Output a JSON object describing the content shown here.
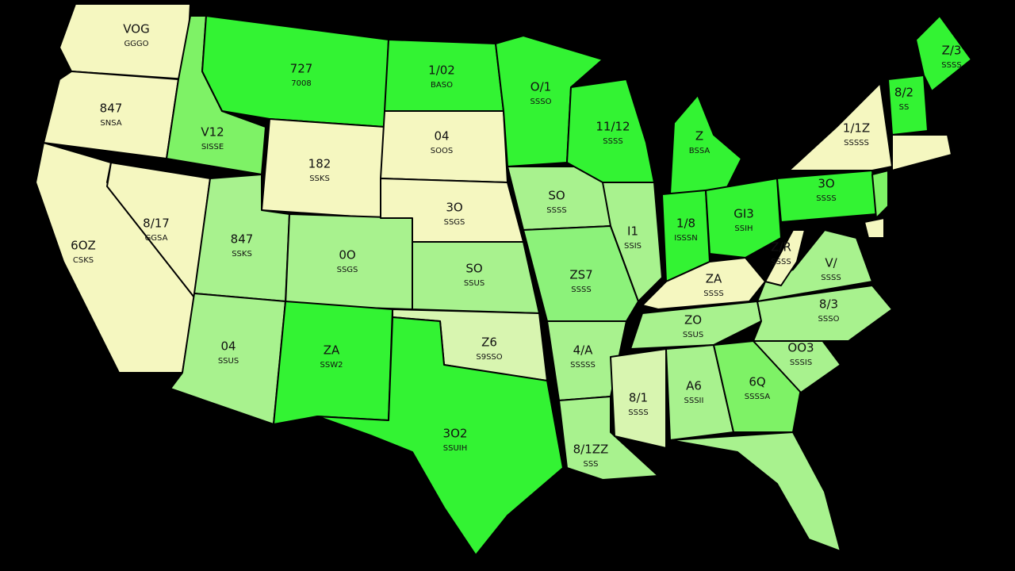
{
  "regions": [
    {
      "label": "VOG",
      "sublabel": "GGGO",
      "color": "#f5f7c0"
    },
    {
      "label": "847",
      "sublabel": "SNSA",
      "color": "#f5f7c0"
    },
    {
      "label": "6OZ",
      "sublabel": "CSKS",
      "color": "#f5f7c0"
    },
    {
      "label": "8/17",
      "sublabel": "GGSA",
      "color": "#f5f7c0"
    },
    {
      "label": "V12",
      "sublabel": "SISSE",
      "color": "#7ef266"
    },
    {
      "label": "727",
      "sublabel": "7008",
      "color": "#33f333"
    },
    {
      "label": "182",
      "sublabel": "SSKS",
      "color": "#f5f7c0"
    },
    {
      "label": "847",
      "sublabel": "SSKS",
      "color": "#a8f28e"
    },
    {
      "label": "0O",
      "sublabel": "SSGS",
      "color": "#a8f28e"
    },
    {
      "label": "04",
      "sublabel": "SSUS",
      "color": "#a8f28e"
    },
    {
      "label": "ZA",
      "sublabel": "SSW2",
      "color": "#33f333"
    },
    {
      "label": "1/02",
      "sublabel": "BASO",
      "color": "#33f333"
    },
    {
      "label": "04",
      "sublabel": "SOOS",
      "color": "#f5f7c0"
    },
    {
      "label": "3O",
      "sublabel": "SSGS",
      "color": "#f5f7c0"
    },
    {
      "label": "SO",
      "sublabel": "SSUS",
      "color": "#a8f28e"
    },
    {
      "label": "Z6",
      "sublabel": "S9SSO",
      "color": "#d8f5b0"
    },
    {
      "label": "3O2",
      "sublabel": "SSUIH",
      "color": "#33f333"
    },
    {
      "label": "O/1",
      "sublabel": "SSSO",
      "color": "#33f333"
    },
    {
      "label": "SO",
      "sublabel": "SSSS",
      "color": "#a8f28e"
    },
    {
      "label": "ZS7",
      "sublabel": "SSSS",
      "color": "#8cf27a"
    },
    {
      "label": "4/A",
      "sublabel": "SSSSS",
      "color": "#a8f28e"
    },
    {
      "label": "8/1ZZ",
      "sublabel": "SSS",
      "color": "#a8f28e"
    },
    {
      "label": "11/12",
      "sublabel": "SSSS",
      "color": "#33f333"
    },
    {
      "label": "I1",
      "sublabel": "SSIS",
      "color": "#a8f28e"
    },
    {
      "label": "Z",
      "sublabel": "BSSA",
      "color": "#33f333"
    },
    {
      "label": "1/8",
      "sublabel": "ISSSN",
      "color": "#33f333"
    },
    {
      "label": "GI3",
      "sublabel": "SSIH",
      "color": "#33f333"
    },
    {
      "label": "ZA",
      "sublabel": "SSSS",
      "color": "#f5f7c0"
    },
    {
      "label": "ZO",
      "sublabel": "SSUS",
      "color": "#a8f28e"
    },
    {
      "label": "8/1",
      "sublabel": "SSSS",
      "color": "#d8f5b0"
    },
    {
      "label": "A6",
      "sublabel": "SSSII",
      "color": "#a8f28e"
    },
    {
      "label": "6Q",
      "sublabel": "SSSSA",
      "color": "#7ef266"
    },
    {
      "color": "#a8f28e"
    },
    {
      "label": "OO3",
      "sublabel": "SSSIS",
      "color": "#a8f28e"
    },
    {
      "label": "8/3",
      "sublabel": "SSSO",
      "color": "#a8f28e"
    },
    {
      "label": "V/",
      "sublabel": "SSSS",
      "color": "#a8f28e"
    },
    {
      "label": "Z/R",
      "sublabel": "SSSS",
      "color": "#f5f7c0"
    },
    {
      "label": "3O",
      "sublabel": "SSSS",
      "color": "#33f333"
    },
    {
      "label": "1/1Z",
      "sublabel": "SSSSS",
      "color": "#f5f7c0"
    },
    {
      "color": "#7ef266"
    },
    {
      "color": "#f5f7c0"
    },
    {
      "label": "8/2",
      "sublabel": "SS",
      "color": "#33f333"
    },
    {
      "label": "Z/3",
      "sublabel": "SSSS",
      "color": "#33f333"
    },
    {
      "color": "#f5f7c0"
    }
  ]
}
